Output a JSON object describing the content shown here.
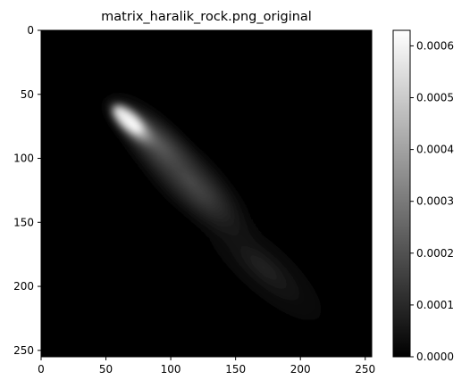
{
  "chart_data": {
    "type": "heatmap",
    "title": "matrix_haralik_rock.png_original",
    "xlabel": "",
    "ylabel": "",
    "x_ticks": [
      0,
      50,
      100,
      150,
      200,
      250
    ],
    "y_ticks": [
      0,
      50,
      100,
      150,
      200,
      250
    ],
    "xlim": [
      0,
      255
    ],
    "ylim": [
      255,
      0
    ],
    "colormap": "gray",
    "colorbar": {
      "range": [
        0,
        0.00063
      ],
      "ticks": [
        "0.0000",
        "0.0001",
        "0.0002",
        "0.0003",
        "0.0004",
        "0.0005",
        "0.0006"
      ]
    },
    "description_of_distribution": {
      "peak_location": [
        75,
        75
      ],
      "peak_value": 0.00062,
      "orientation": "diagonal from upper-left to lower-right",
      "extends_to": [
        230,
        230
      ]
    },
    "colors": {
      "low": "#000000",
      "high": "#ffffff",
      "axis": "#000000"
    }
  }
}
